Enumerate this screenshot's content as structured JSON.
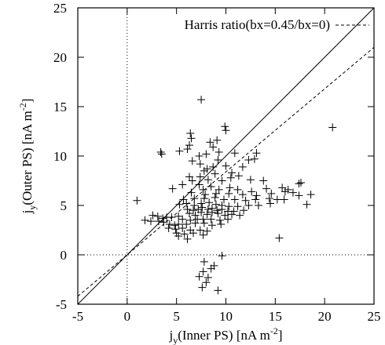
{
  "chart_data": {
    "type": "scatter",
    "xlabel": {
      "main": "j",
      "sub": "y",
      "rest": "(Inner PS) [nA m",
      "sup": "-2",
      "end": "]"
    },
    "ylabel": {
      "main": "j",
      "sub": "y",
      "rest": "(Outer PS) [nA m",
      "sup": "-2",
      "end": "]"
    },
    "xlim": [
      -5,
      25
    ],
    "ylim": [
      -5,
      25
    ],
    "xticks": [
      -5,
      0,
      5,
      10,
      15,
      20,
      25
    ],
    "yticks": [
      -5,
      0,
      5,
      10,
      15,
      20,
      25
    ],
    "zero_lines": "dotted",
    "legend_position": "top-right",
    "series": [
      {
        "name": "Harris ratio(bx=0.45/bx=0)",
        "type": "line",
        "style": "dashed",
        "slope": 0.84,
        "intercept": 0
      },
      {
        "type": "line",
        "style": "solid",
        "slope": 1,
        "intercept": 0
      },
      {
        "type": "scatter",
        "marker": "+",
        "points": [
          [
            7.5,
            15.7
          ],
          [
            20.8,
            12.9
          ],
          [
            9.9,
            13.0
          ],
          [
            10.0,
            12.6
          ],
          [
            6.4,
            12.3
          ],
          [
            6.5,
            11.8
          ],
          [
            9.1,
            11.6
          ],
          [
            6.3,
            11.1
          ],
          [
            8.4,
            11.4
          ],
          [
            8.7,
            10.9
          ],
          [
            3.4,
            10.4
          ],
          [
            3.5,
            10.2
          ],
          [
            5.3,
            10.5
          ],
          [
            6.1,
            10.7
          ],
          [
            8.0,
            10.2
          ],
          [
            9.3,
            10.4
          ],
          [
            10.9,
            10.3
          ],
          [
            13.1,
            10.3
          ],
          [
            12.9,
            9.7
          ],
          [
            7.3,
            10.0
          ],
          [
            6.6,
            9.5
          ],
          [
            7.4,
            9.2
          ],
          [
            9.2,
            9.6
          ],
          [
            12.3,
            9.6
          ],
          [
            11.7,
            8.9
          ],
          [
            8.7,
            8.9
          ],
          [
            10.0,
            9.0
          ],
          [
            8.1,
            8.7
          ],
          [
            7.8,
            8.5
          ],
          [
            8.9,
            8.2
          ],
          [
            10.6,
            8.3
          ],
          [
            11.3,
            8.0
          ],
          [
            6.3,
            7.9
          ],
          [
            7.4,
            7.9
          ],
          [
            8.2,
            7.6
          ],
          [
            9.6,
            7.5
          ],
          [
            10.5,
            7.8
          ],
          [
            12.5,
            7.6
          ],
          [
            13.8,
            7.5
          ],
          [
            6.6,
            7.5
          ],
          [
            7.3,
            7.1
          ],
          [
            8.5,
            6.9
          ],
          [
            5.6,
            7.1
          ],
          [
            7.7,
            6.6
          ],
          [
            9.3,
            6.6
          ],
          [
            10.4,
            6.8
          ],
          [
            11.2,
            6.6
          ],
          [
            12.6,
            6.4
          ],
          [
            14.1,
            6.7
          ],
          [
            15.7,
            6.8
          ],
          [
            17.6,
            7.3
          ],
          [
            17.4,
            7.2
          ],
          [
            4.6,
            6.7
          ],
          [
            6.5,
            6.3
          ],
          [
            7.9,
            6.1
          ],
          [
            9.0,
            6.2
          ],
          [
            10.3,
            6.2
          ],
          [
            11.7,
            6.1
          ],
          [
            13.1,
            6.0
          ],
          [
            14.6,
            6.2
          ],
          [
            16.0,
            6.4
          ],
          [
            16.3,
            6.6
          ],
          [
            18.6,
            6.1
          ],
          [
            1.0,
            5.5
          ],
          [
            5.7,
            5.6
          ],
          [
            6.8,
            5.7
          ],
          [
            7.8,
            5.7
          ],
          [
            8.9,
            5.8
          ],
          [
            9.8,
            5.6
          ],
          [
            10.9,
            5.6
          ],
          [
            12.0,
            5.5
          ],
          [
            13.0,
            5.6
          ],
          [
            14.4,
            5.7
          ],
          [
            15.9,
            5.6
          ],
          [
            16.8,
            6.3
          ],
          [
            17.4,
            6.0
          ],
          [
            18.2,
            5.1
          ],
          [
            5.3,
            5.1
          ],
          [
            6.0,
            5.2
          ],
          [
            6.8,
            5.0
          ],
          [
            7.5,
            5.2
          ],
          [
            8.3,
            5.3
          ],
          [
            9.0,
            5.1
          ],
          [
            9.6,
            5.0
          ],
          [
            10.3,
            4.9
          ],
          [
            11.2,
            4.9
          ],
          [
            12.3,
            5.0
          ],
          [
            13.3,
            5.0
          ],
          [
            14.5,
            5.2
          ],
          [
            15.2,
            5.6
          ],
          [
            6.1,
            4.6
          ],
          [
            6.7,
            4.5
          ],
          [
            7.2,
            4.6
          ],
          [
            7.6,
            4.8
          ],
          [
            8.2,
            4.6
          ],
          [
            8.6,
            4.7
          ],
          [
            9.1,
            4.5
          ],
          [
            9.6,
            4.6
          ],
          [
            10.2,
            4.4
          ],
          [
            10.8,
            4.4
          ],
          [
            11.8,
            4.5
          ],
          [
            6.3,
            4.2
          ],
          [
            6.9,
            4.0
          ],
          [
            7.5,
            4.3
          ],
          [
            8.1,
            4.1
          ],
          [
            8.6,
            4.3
          ],
          [
            9.2,
            4.2
          ],
          [
            9.9,
            4.0
          ],
          [
            10.6,
            4.1
          ],
          [
            11.4,
            4.0
          ],
          [
            2.6,
            4.0
          ],
          [
            3.1,
            3.9
          ],
          [
            3.6,
            3.7
          ],
          [
            4.0,
            3.8
          ],
          [
            4.5,
            3.8
          ],
          [
            5.2,
            3.9
          ],
          [
            5.6,
            3.6
          ],
          [
            6.4,
            3.5
          ],
          [
            7.1,
            3.6
          ],
          [
            7.7,
            3.6
          ],
          [
            8.5,
            3.6
          ],
          [
            9.4,
            3.5
          ],
          [
            10.2,
            3.6
          ],
          [
            1.8,
            3.5
          ],
          [
            2.4,
            3.4
          ],
          [
            3.2,
            3.4
          ],
          [
            3.7,
            3.3
          ],
          [
            4.3,
            3.1
          ],
          [
            4.8,
            3.0
          ],
          [
            5.2,
            3.1
          ],
          [
            6.0,
            3.1
          ],
          [
            6.9,
            3.2
          ],
          [
            7.8,
            3.2
          ],
          [
            8.6,
            3.0
          ],
          [
            9.5,
            3.1
          ],
          [
            4.2,
            2.7
          ],
          [
            4.9,
            2.6
          ],
          [
            5.6,
            2.7
          ],
          [
            6.4,
            2.5
          ],
          [
            7.4,
            2.5
          ],
          [
            8.1,
            2.4
          ],
          [
            5.0,
            2.2
          ],
          [
            5.8,
            2.1
          ],
          [
            6.7,
            2.2
          ],
          [
            7.7,
            2.0
          ],
          [
            5.2,
            1.9
          ],
          [
            6.1,
            1.6
          ],
          [
            15.4,
            1.7
          ],
          [
            9.6,
            -0.1
          ],
          [
            7.8,
            -0.7
          ],
          [
            8.5,
            -1.4
          ],
          [
            8.8,
            -1.1
          ],
          [
            7.7,
            -1.7
          ],
          [
            7.3,
            -2.2
          ],
          [
            8.2,
            -2.3
          ],
          [
            7.6,
            -3.3
          ],
          [
            9.2,
            -3.6
          ],
          [
            8.0,
            -2.8
          ]
        ]
      }
    ]
  }
}
